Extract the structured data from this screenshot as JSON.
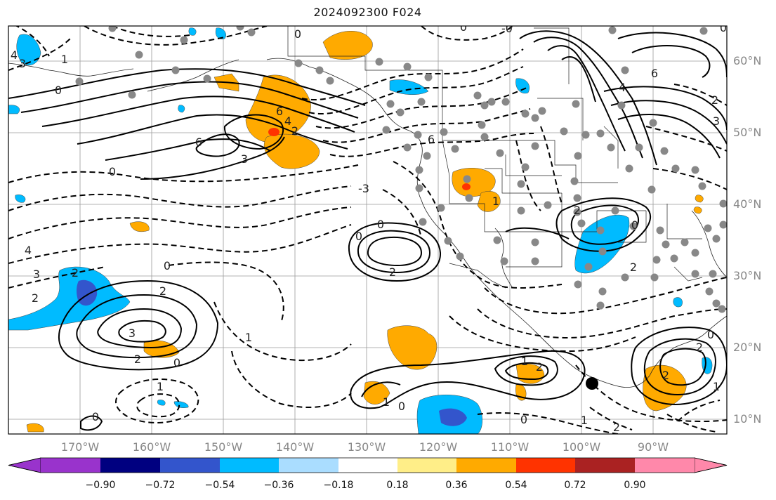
{
  "title": "2024092300 F024",
  "lat_labels": [
    "60°N",
    "50°N",
    "40°N",
    "30°N",
    "20°N",
    "10°N"
  ],
  "lon_labels": [
    "170°W",
    "160°W",
    "150°W",
    "140°W",
    "130°W",
    "120°W",
    "110°W",
    "100°W",
    "90°W"
  ],
  "colorbar": {
    "ticks": [
      "−0.90",
      "−0.72",
      "−0.54",
      "−0.36",
      "−0.18",
      "0.18",
      "0.36",
      "0.54",
      "0.72",
      "0.90"
    ],
    "colors": [
      "#9933cc",
      "#000080",
      "#3355cc",
      "#00bbff",
      "#aaddff",
      "#ffffff",
      "#ffee88",
      "#ffaa00",
      "#ff3300",
      "#aa2222",
      "#ff88aa"
    ]
  },
  "contour_labels": [
    "-0",
    "0",
    "1",
    "4",
    "3",
    "6",
    "6",
    "4",
    "2",
    "0",
    "6",
    "4",
    "2",
    "3",
    "6",
    "0",
    "3",
    "-3",
    "0",
    "2",
    "2",
    "4",
    "3",
    "2",
    "0",
    "2",
    "3",
    "2",
    "0",
    "1",
    "1",
    "0",
    "0",
    "1",
    "1",
    "2",
    "0",
    "1",
    "2",
    "0",
    "0",
    "2",
    "1",
    "2",
    "0",
    "2",
    "1",
    "0",
    "2",
    "0"
  ],
  "marker_note": ""
}
